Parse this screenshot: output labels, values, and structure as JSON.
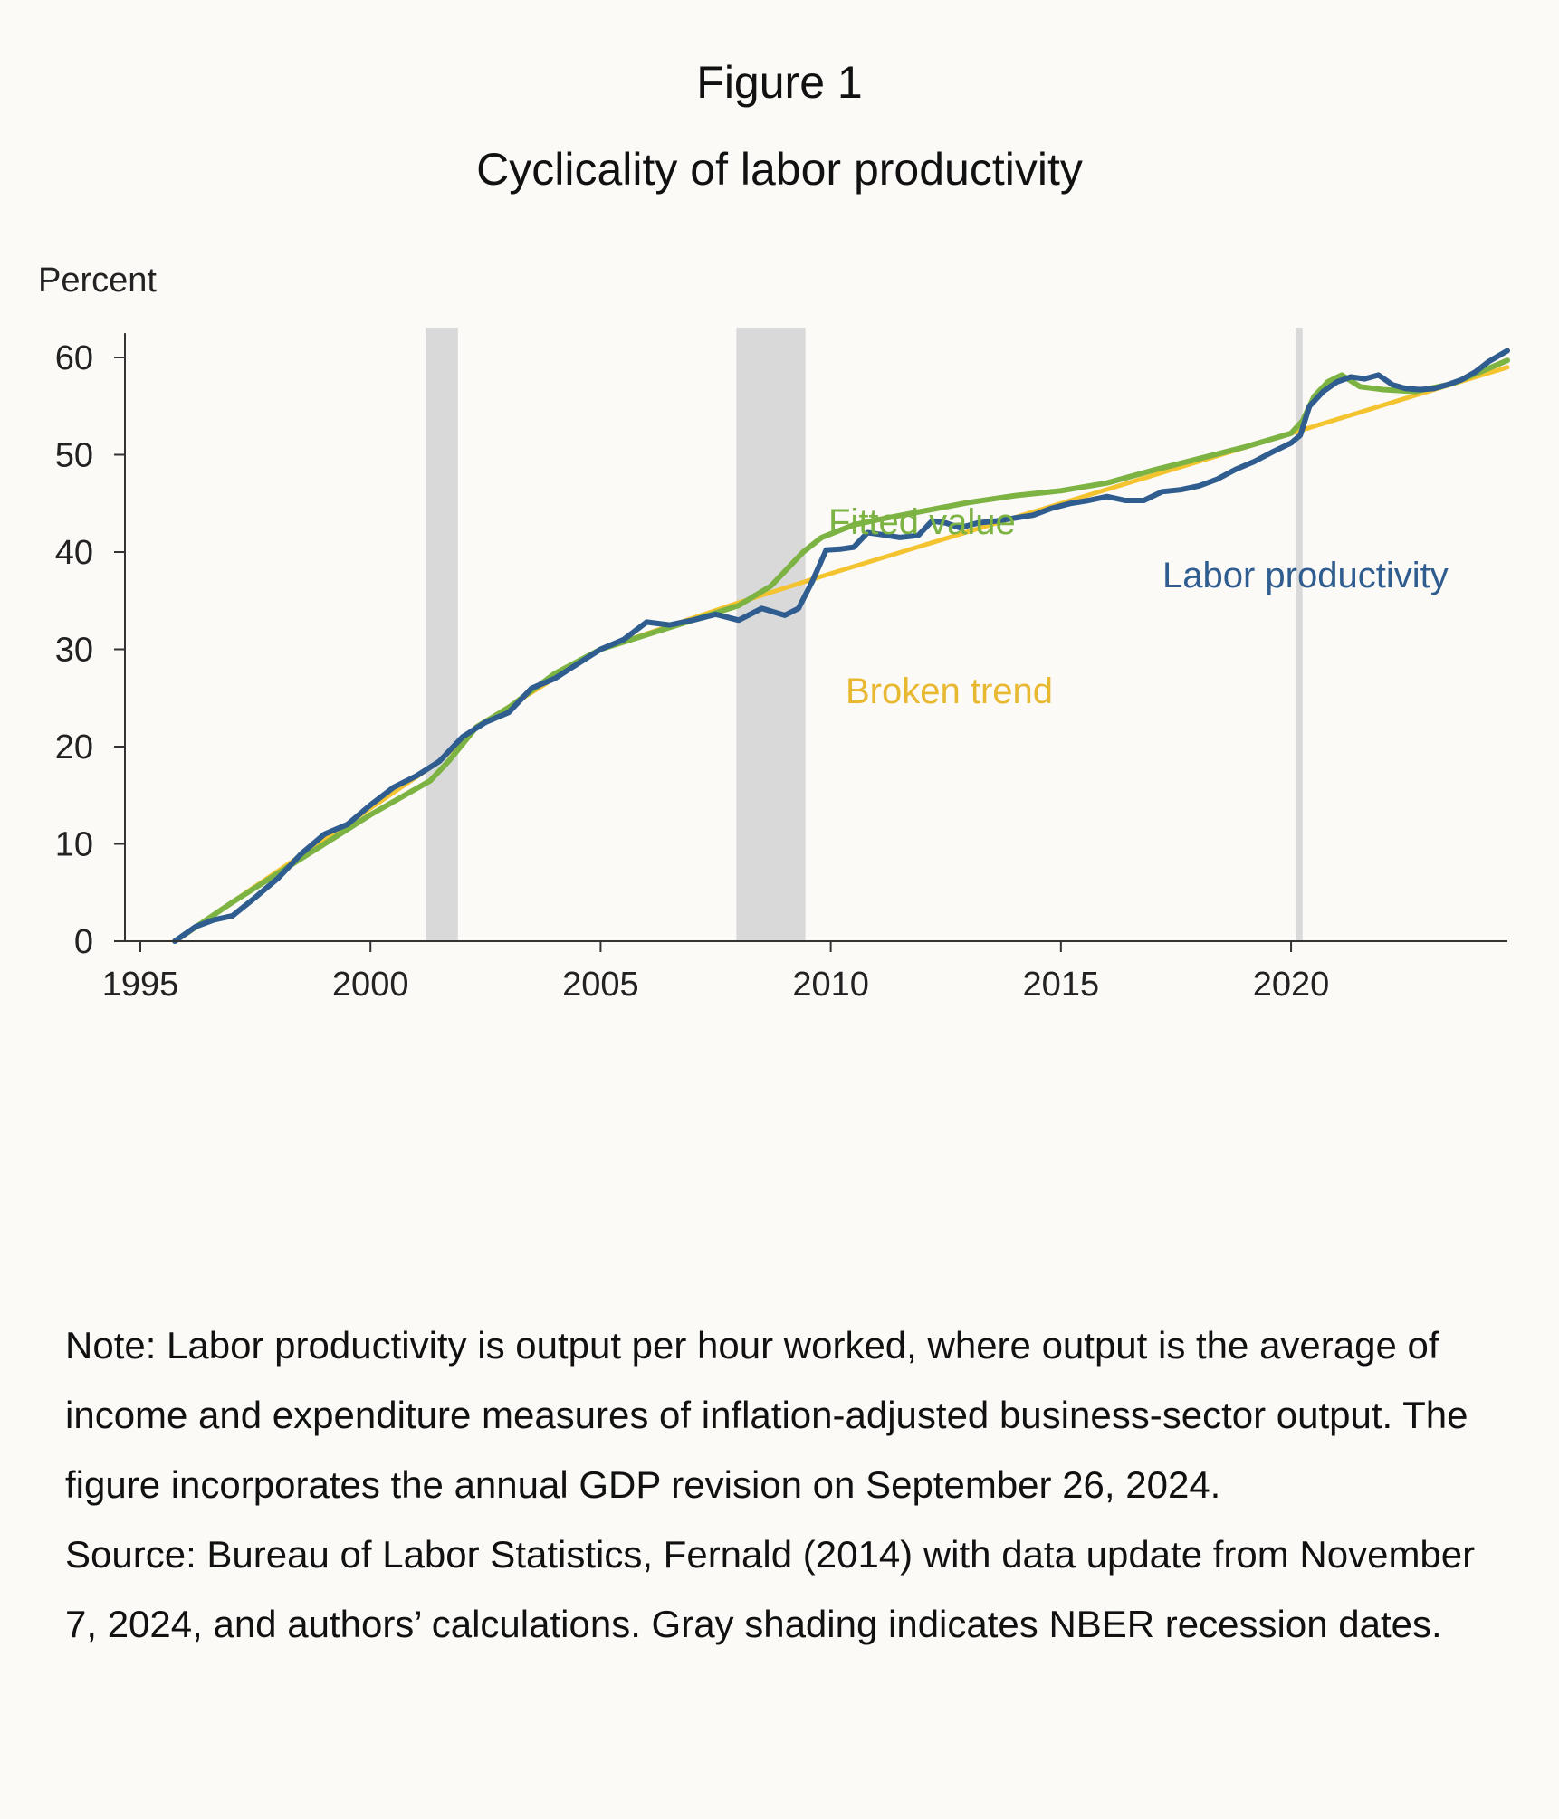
{
  "figure_label": "Figure 1",
  "title": "Cyclicality of labor productivity",
  "note": "Note: Labor productivity is output per hour worked, where output is the average of income and expenditure measures of inflation-adjusted business-sector output. The figure incorporates the annual GDP revision on September 26, 2024.",
  "source": "Source: Bureau of Labor Statistics, Fernald (2014) with data update from November 7, 2024, and authors’ calculations. Gray shading indicates NBER recession dates.",
  "chart_data": {
    "type": "line",
    "ylabel": "Percent",
    "xlabel": "",
    "xlim": [
      1995,
      2024.7
    ],
    "ylim": [
      0,
      62
    ],
    "x_ticks": [
      1995,
      2000,
      2005,
      2010,
      2015,
      2020
    ],
    "y_ticks": [
      0,
      10,
      20,
      30,
      40,
      50,
      60
    ],
    "recessions": [
      {
        "start": 2001.2,
        "end": 2001.9
      },
      {
        "start": 2007.95,
        "end": 2009.45
      },
      {
        "start": 2020.1,
        "end": 2020.25
      }
    ],
    "series": [
      {
        "name": "Broken trend",
        "color": "#f4c430",
        "x": [
          1995.75,
          2001.5,
          2002.3,
          2005,
          2008,
          2010,
          2020,
          2024.7
        ],
        "y": [
          0,
          18.5,
          22,
          30,
          34.8,
          37.8,
          52.2,
          59
        ]
      },
      {
        "name": "Fitted value",
        "color": "#7cb342",
        "x": [
          1995.75,
          1997,
          1998.5,
          2000,
          2001.3,
          2001.7,
          2002.3,
          2003,
          2004,
          2005,
          2006,
          2007,
          2008,
          2008.7,
          2009.4,
          2009.8,
          2010.5,
          2011,
          2012,
          2013,
          2014,
          2015,
          2016,
          2017,
          2018,
          2019,
          2020,
          2020.25,
          2020.5,
          2020.8,
          2021.1,
          2021.5,
          2022,
          2022.7,
          2023.5,
          2024.7
        ],
        "y": [
          0,
          4,
          8.5,
          13,
          16.5,
          18.5,
          22,
          24,
          27.5,
          30,
          31.5,
          33,
          34.5,
          36.5,
          40,
          41.5,
          42.8,
          43.3,
          44.2,
          45.1,
          45.8,
          46.3,
          47.1,
          48.4,
          49.6,
          50.8,
          52.2,
          53.5,
          56,
          57.5,
          58.2,
          57,
          56.7,
          56.5,
          57.3,
          59.7
        ]
      },
      {
        "name": "Labor productivity",
        "color": "#2f5d8f",
        "x": [
          1995.75,
          1996.2,
          1996.6,
          1997,
          1997.5,
          1998,
          1998.5,
          1999,
          1999.5,
          2000,
          2000.5,
          2001,
          2001.5,
          2002,
          2002.5,
          2003,
          2003.5,
          2004,
          2004.5,
          2005,
          2005.5,
          2006,
          2006.5,
          2007,
          2007.5,
          2008,
          2008.5,
          2009,
          2009.3,
          2009.6,
          2009.9,
          2010.2,
          2010.5,
          2010.8,
          2011.1,
          2011.5,
          2011.9,
          2012.2,
          2012.5,
          2012.8,
          2013.2,
          2013.6,
          2014,
          2014.4,
          2014.8,
          2015.2,
          2015.6,
          2016,
          2016.4,
          2016.8,
          2017.2,
          2017.6,
          2018,
          2018.4,
          2018.8,
          2019.2,
          2019.6,
          2020,
          2020.2,
          2020.4,
          2020.7,
          2021,
          2021.3,
          2021.6,
          2021.9,
          2022.2,
          2022.5,
          2022.8,
          2023.1,
          2023.4,
          2023.7,
          2024,
          2024.3,
          2024.7
        ],
        "y": [
          0,
          1.5,
          2.2,
          2.6,
          4.5,
          6.5,
          9,
          11,
          12,
          14,
          15.8,
          17,
          18.5,
          21,
          22.5,
          23.5,
          26,
          27,
          28.5,
          30,
          31,
          32.8,
          32.5,
          33,
          33.6,
          33,
          34.2,
          33.5,
          34.2,
          37,
          40.2,
          40.3,
          40.5,
          42,
          41.8,
          41.5,
          41.7,
          43.2,
          43,
          42.5,
          43,
          43.2,
          43.5,
          43.8,
          44.5,
          45,
          45.3,
          45.7,
          45.3,
          45.3,
          46.2,
          46.4,
          46.8,
          47.5,
          48.5,
          49.3,
          50.3,
          51.2,
          52,
          55,
          56.5,
          57.5,
          58,
          57.8,
          58.2,
          57.2,
          56.8,
          56.7,
          56.8,
          57.2,
          57.7,
          58.5,
          59.6,
          60.7
        ]
      }
    ],
    "annotations": [
      {
        "text": "Fitted value",
        "series": "Fitted value"
      },
      {
        "text": "Labor productivity",
        "series": "Labor productivity"
      },
      {
        "text": "Broken trend",
        "series": "Broken trend"
      }
    ]
  }
}
